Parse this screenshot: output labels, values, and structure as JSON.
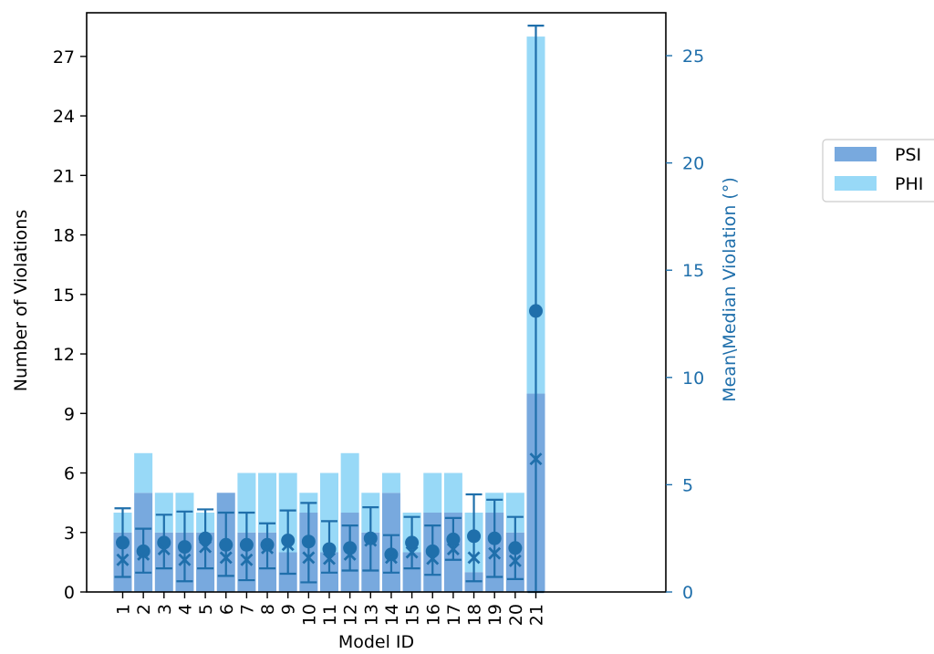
{
  "chart_data": {
    "type": "bar",
    "categories": [
      "1",
      "2",
      "3",
      "4",
      "5",
      "6",
      "7",
      "8",
      "9",
      "10",
      "11",
      "12",
      "13",
      "14",
      "15",
      "16",
      "17",
      "18",
      "19",
      "20",
      "21"
    ],
    "xlabel": "Model ID",
    "ylabel": "Number of Violations",
    "y2label": "Mean\\Median Violation (°)",
    "ylim": [
      0,
      29.2
    ],
    "y2lim": [
      0,
      27.0
    ],
    "yticks": [
      0,
      3,
      6,
      9,
      12,
      15,
      18,
      21,
      24,
      27
    ],
    "y2ticks": [
      0,
      5,
      10,
      15,
      20,
      25
    ],
    "series": [
      {
        "name": "PSI",
        "color": "#78a9de",
        "values": [
          3,
          5,
          3,
          3,
          3,
          5,
          3,
          3,
          2,
          4,
          2,
          4,
          3,
          5,
          2,
          4,
          4,
          1,
          4,
          3,
          10
        ]
      },
      {
        "name": "PHI",
        "color": "#98d9f7",
        "values": [
          1,
          2,
          2,
          2,
          1,
          0,
          3,
          3,
          4,
          1,
          4,
          3,
          2,
          1,
          2,
          2,
          2,
          3,
          1,
          2,
          18
        ]
      }
    ],
    "mean_series": {
      "color": "#1f6fab",
      "mean": [
        2.3,
        1.9,
        2.3,
        2.1,
        2.5,
        2.2,
        2.2,
        2.2,
        2.4,
        2.35,
        2.0,
        2.05,
        2.5,
        1.75,
        2.3,
        1.9,
        2.45,
        2.6,
        2.5,
        2.05,
        13.1
      ],
      "median": [
        1.5,
        1.75,
        2.0,
        1.5,
        2.1,
        1.6,
        1.5,
        2.05,
        2.2,
        1.6,
        1.55,
        1.75,
        2.4,
        1.6,
        1.85,
        1.55,
        2.0,
        1.6,
        1.8,
        1.45,
        6.2
      ],
      "err_low": [
        0.7,
        0.9,
        1.1,
        0.5,
        1.1,
        0.75,
        0.55,
        1.1,
        0.85,
        0.45,
        0.9,
        1.0,
        1.0,
        0.9,
        1.1,
        0.8,
        1.5,
        0.5,
        0.7,
        0.6,
        0
      ],
      "err_high": [
        3.9,
        2.95,
        3.6,
        3.75,
        3.85,
        3.7,
        3.7,
        3.2,
        3.8,
        4.15,
        3.3,
        3.1,
        3.95,
        2.65,
        3.5,
        3.1,
        3.45,
        4.55,
        4.3,
        3.5,
        26.4
      ]
    },
    "legend": {
      "position": "right"
    },
    "grid": false
  }
}
